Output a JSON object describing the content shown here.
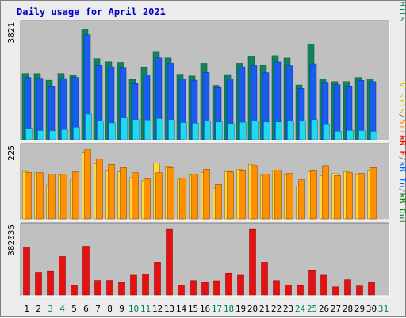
{
  "chart_data": {
    "title": "Daily usage for April 2021",
    "type": "bar",
    "days": [
      "1",
      "2",
      "3",
      "4",
      "5",
      "6",
      "7",
      "8",
      "9",
      "10",
      "11",
      "12",
      "13",
      "14",
      "15",
      "16",
      "17",
      "18",
      "19",
      "20",
      "21",
      "22",
      "23",
      "24",
      "25",
      "26",
      "27",
      "28",
      "29",
      "30",
      "31"
    ],
    "weekend_days": [
      3,
      4,
      10,
      11,
      17,
      18,
      24,
      25,
      31
    ],
    "panels": [
      {
        "id": "traffic",
        "max_label": "3821",
        "ylim": [
          0,
          3821
        ],
        "legend": [
          {
            "text": "Pages",
            "color": "#00c0c0"
          },
          {
            "text": "/",
            "color": "#808080"
          },
          {
            "text": "Files",
            "color": "#0060ff"
          },
          {
            "text": "/",
            "color": "#808080"
          },
          {
            "text": "Hits",
            "color": "#008060"
          }
        ],
        "series": [
          {
            "name": "Hits",
            "color": "#10845c",
            "values": [
              2177,
              2177,
              1959,
              2177,
              2140,
              3653,
              2677,
              2569,
              2550,
              1986,
              2375,
              2909,
              2700,
              2156,
              2097,
              2520,
              1791,
              2145,
              2530,
              2765,
              2450,
              2776,
              2697,
              1804,
              3161,
              2003,
              1914,
              1914,
              2050,
              2003,
              0
            ]
          },
          {
            "name": "Files",
            "color": "#1a5cf0",
            "values": [
              2050,
              2023,
              1749,
              2014,
              2050,
              3462,
              2450,
              2406,
              2360,
              1849,
              2132,
              2700,
              2517,
              1993,
              1961,
              2214,
              1722,
              2001,
              2405,
              2445,
              2209,
              2566,
              2442,
              1691,
              2486,
              1868,
              1814,
              1745,
              1958,
              1914,
              0
            ]
          },
          {
            "name": "Pages",
            "color": "#22d8f0",
            "values": [
              349,
              300,
              292,
              333,
              410,
              837,
              615,
              550,
              716,
              659,
              648,
              696,
              659,
              561,
              539,
              608,
              580,
              532,
              570,
              608,
              580,
              582,
              611,
              605,
              659,
              518,
              281,
              304,
              303,
              276,
              0
            ]
          }
        ]
      },
      {
        "id": "visits",
        "max_label": "225",
        "ylim": [
          0,
          225
        ],
        "legend": [
          {
            "text": "Visits",
            "color": "#e0c000"
          },
          {
            "text": "/",
            "color": "#808080"
          },
          {
            "text": "Sites",
            "color": "#ff8000"
          }
        ],
        "series": [
          {
            "name": "Visits",
            "color": "#ffd840",
            "values": [
              148,
              144,
              106,
              137,
              121,
              206,
              172,
              150,
              147,
              129,
              119,
              175,
              164,
              124,
              138,
              144,
              96,
              148,
              155,
              170,
              136,
              152,
              137,
              103,
              147,
              135,
              141,
              147,
              138,
              149,
              0
            ]
          },
          {
            "name": "Sites",
            "color": "#ff9000",
            "values": [
              145,
              144,
              140,
              140,
              147,
              216,
              186,
              170,
              160,
              144,
              125,
              144,
              160,
              128,
              140,
              155,
              108,
              147,
              150,
              166,
              140,
              152,
              142,
              122,
              150,
              166,
              135,
              144,
              142,
              160,
              0
            ]
          }
        ]
      },
      {
        "id": "kbytes",
        "max_label": "382035",
        "ylim": [
          0,
          382035
        ],
        "legend": [
          {
            "text": "kB F",
            "color": "#e00000"
          },
          {
            "text": "/",
            "color": "#808080"
          },
          {
            "text": "kB In",
            "color": "#0060ff"
          },
          {
            "text": "/",
            "color": "#808080"
          },
          {
            "text": "kB Out",
            "color": "#008000"
          }
        ],
        "series": [
          {
            "name": "kB F",
            "color": "#e81010",
            "values": [
              265000,
              125000,
              131000,
              213000,
              53000,
              270000,
              81000,
              81000,
              70000,
              110000,
              117000,
              180000,
              364000,
              53000,
              80000,
              70000,
              79000,
              122000,
              110000,
              364000,
              178000,
              80000,
              56000,
              52000,
              135000,
              110000,
              45000,
              85000,
              50000,
              70000,
              0
            ]
          }
        ]
      }
    ]
  }
}
